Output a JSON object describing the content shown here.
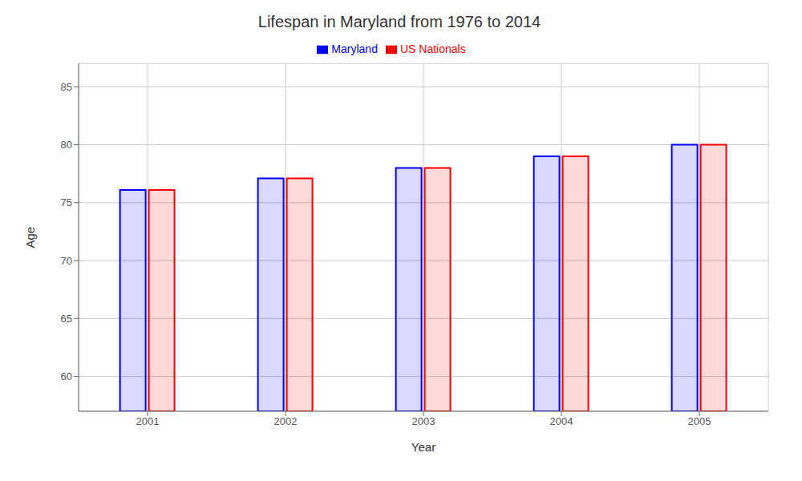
{
  "chart_data": {
    "type": "bar",
    "title": "Lifespan in Maryland from 1976 to 2014",
    "xlabel": "Year",
    "ylabel": "Age",
    "categories": [
      "2001",
      "2002",
      "2003",
      "2004",
      "2005"
    ],
    "series": [
      {
        "name": "Maryland",
        "color": "#0000ff",
        "values": [
          76.1,
          77.1,
          78.0,
          79.0,
          80.0
        ]
      },
      {
        "name": "US Nationals",
        "color": "#ff0000",
        "values": [
          76.1,
          77.1,
          78.0,
          79.0,
          80.0
        ]
      }
    ],
    "ylim": [
      57,
      87
    ],
    "yticks": [
      60,
      65,
      70,
      75,
      80,
      85
    ],
    "grid": true,
    "legend": "top"
  }
}
